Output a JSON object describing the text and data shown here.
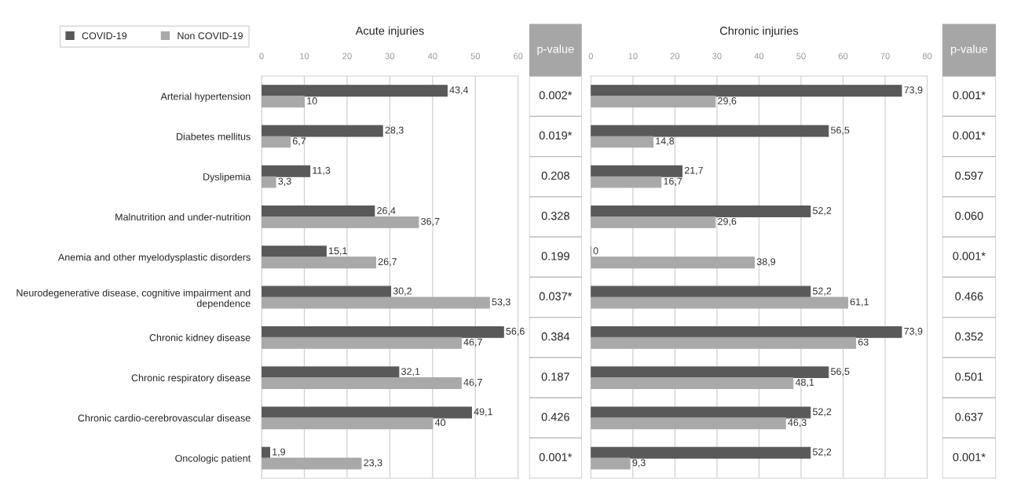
{
  "chart_data": [
    {
      "type": "bar",
      "orientation": "horizontal",
      "title": "Acute injuries",
      "categories": [
        "Arterial hypertension",
        "Diabetes mellitus",
        "Dyslipemia",
        "Malnutrition and under-nutrition",
        "Anemia and other myelodysplastic disorders",
        "Neurodegenerative disease, cognitive impairment and\ndependence",
        "Chronic kidney disease",
        "Chronic respiratory disease",
        "Chronic cardio-cerebrovascular disease",
        "Oncologic patient"
      ],
      "series": [
        {
          "name": "COVID-19",
          "color": "#595959",
          "values": [
            43.4,
            28.3,
            11.3,
            26.4,
            15.1,
            30.2,
            56.6,
            32.1,
            49.1,
            1.9
          ],
          "value_labels": [
            "43,4",
            "28,3",
            "11,3",
            "26,4",
            "15,1",
            "30,2",
            "56,6",
            "32,1",
            "49,1",
            "1,9"
          ]
        },
        {
          "name": "Non COVID-19",
          "color": "#a9a9a9",
          "values": [
            10,
            6.7,
            3.3,
            36.7,
            26.7,
            53.3,
            46.7,
            46.7,
            40,
            23.3
          ],
          "value_labels": [
            "10",
            "6,7",
            "3,3",
            "36,7",
            "26,7",
            "53,3",
            "46,7",
            "46,7",
            "40",
            "23,3"
          ]
        }
      ],
      "xlim": [
        0,
        60
      ],
      "xticks": [
        0,
        10,
        20,
        30,
        40,
        50,
        60
      ],
      "grid": "x",
      "legend": "top left"
    },
    {
      "type": "other",
      "title": "p-value",
      "annotations": [
        "0.002*",
        "0.019*",
        "0.208",
        "0.328",
        "0.199",
        "0.037*",
        "0.384",
        "0.187",
        "0.426",
        "0.001*"
      ]
    },
    {
      "type": "bar",
      "orientation": "horizontal",
      "title": "Chronic injuries",
      "tick_labels": "x",
      "categories": [
        null,
        null,
        null,
        null,
        null,
        null,
        null,
        null,
        null,
        null
      ],
      "series": [
        {
          "color": "#595959",
          "values": [
            73.9,
            56.5,
            21.7,
            52.2,
            0,
            52.2,
            73.9,
            56.5,
            52.2,
            52.2
          ],
          "value_labels": [
            "73,9",
            "56,5",
            "21,7",
            "52,2",
            "0",
            "52,2",
            "73,9",
            "56,5",
            "52,2",
            "52,2"
          ]
        },
        {
          "color": "#a9a9a9",
          "values": [
            29.6,
            14.8,
            16.7,
            29.6,
            38.9,
            61.1,
            63,
            48.1,
            46.3,
            9.3
          ],
          "value_labels": [
            "29,6",
            "14,8",
            "16,7",
            "29,6",
            "38,9",
            "61,1",
            "63",
            "48,1",
            "46,3",
            "9,3"
          ]
        }
      ],
      "xlim": [
        0,
        80
      ],
      "xticks": [
        0,
        10,
        20,
        30,
        40,
        50,
        60,
        70,
        80
      ],
      "grid": "x"
    },
    {
      "type": "other",
      "title": "p-value",
      "annotations": [
        "0.001*",
        "0.001*",
        "0.597",
        "0.060",
        "0.001*",
        "0.466",
        "0.352",
        "0.501",
        "0.637",
        "0.001*"
      ]
    }
  ]
}
